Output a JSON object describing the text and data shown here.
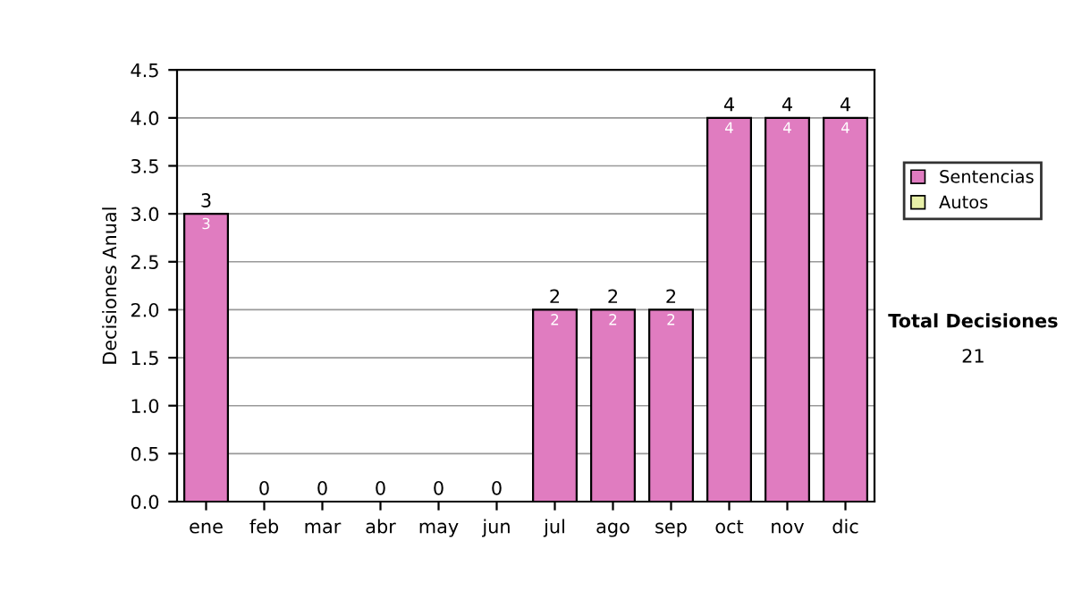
{
  "chart_data": {
    "type": "bar",
    "ylabel": "Decisiones Anual",
    "categories": [
      "ene",
      "feb",
      "mar",
      "abr",
      "may",
      "jun",
      "jul",
      "ago",
      "sep",
      "oct",
      "nov",
      "dic"
    ],
    "series": [
      {
        "name": "Sentencias",
        "color": "#e07cc0",
        "values": [
          3,
          0,
          0,
          0,
          0,
          0,
          2,
          2,
          2,
          4,
          4,
          4
        ],
        "value_labels": [
          "3",
          null,
          null,
          null,
          null,
          null,
          "2",
          "2",
          "2",
          "4",
          "4",
          "4"
        ]
      },
      {
        "name": "Autos",
        "color": "#e8f0a8",
        "values": [
          0,
          0,
          0,
          0,
          0,
          0,
          0,
          0,
          0,
          0,
          0,
          0
        ]
      }
    ],
    "stacked": true,
    "totals": [
      "3",
      "0",
      "0",
      "0",
      "0",
      "0",
      "2",
      "2",
      "2",
      "4",
      "4",
      "4"
    ],
    "ylim": [
      0,
      4.5
    ],
    "yticks": [
      {
        "value": 0,
        "label": "0.0"
      },
      {
        "value": 0.5,
        "label": "0.5"
      },
      {
        "value": 1,
        "label": "1.0"
      },
      {
        "value": 1.5,
        "label": "1.5"
      },
      {
        "value": 2,
        "label": "2.0"
      },
      {
        "value": 2.5,
        "label": "2.5"
      },
      {
        "value": 3,
        "label": "3.0"
      },
      {
        "value": 3.5,
        "label": "3.5"
      },
      {
        "value": 4,
        "label": "4.0"
      },
      {
        "value": 4.5,
        "label": "4.5"
      }
    ],
    "grid": "y",
    "legend": "right",
    "annotations": [
      "Total Decisiones",
      "21"
    ]
  }
}
